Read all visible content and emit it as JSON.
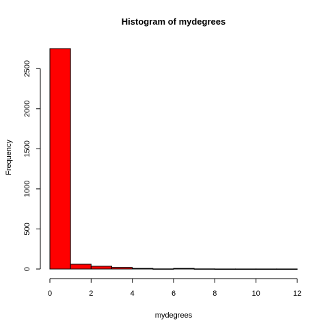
{
  "chart_data": {
    "type": "bar",
    "title": "Histogram of mydegrees",
    "xlabel": "mydegrees",
    "ylabel": "Frequency",
    "bin_edges": [
      0,
      1,
      2,
      3,
      4,
      5,
      6,
      7,
      8,
      9,
      10,
      11,
      12
    ],
    "values": [
      2750,
      60,
      35,
      20,
      8,
      2,
      8,
      2,
      1,
      1,
      1,
      1
    ],
    "xlim": [
      0,
      12
    ],
    "ylim": [
      0,
      2750
    ],
    "x_ticks": [
      "0",
      "2",
      "4",
      "6",
      "8",
      "10",
      "12"
    ],
    "y_ticks": [
      "0",
      "500",
      "1000",
      "1500",
      "2000",
      "2500"
    ],
    "bar_color": "#ff0000",
    "bar_border_color": "#000000",
    "grid": false
  }
}
